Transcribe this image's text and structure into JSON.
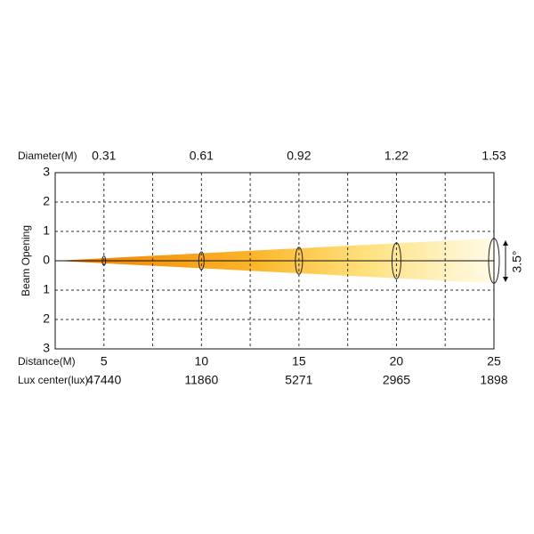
{
  "chart_data": {
    "type": "beam",
    "y_label": "Beam Opening",
    "diameter_label": "Diameter(M)",
    "distance_label": "Distance(M)",
    "lux_label": "Lux center(lux)",
    "beam_angle": "3.5°",
    "x": [
      5,
      10,
      15,
      20,
      25
    ],
    "diameter": [
      0.31,
      0.61,
      0.92,
      1.22,
      1.53
    ],
    "lux": [
      47440,
      11860,
      5271,
      2965,
      1898
    ],
    "xlim": [
      2.5,
      25
    ],
    "xgrid": [
      5,
      7.5,
      10,
      12.5,
      15,
      17.5,
      20,
      22.5
    ],
    "ylim": [
      -3,
      3
    ],
    "yticks": [
      {
        "value": 3,
        "label": "3"
      },
      {
        "value": 2,
        "label": "2"
      },
      {
        "value": 1,
        "label": "1"
      },
      {
        "value": 0,
        "label": "0"
      },
      {
        "value": -1,
        "label": "1"
      },
      {
        "value": -2,
        "label": "2"
      },
      {
        "value": -3,
        "label": "3"
      }
    ]
  }
}
